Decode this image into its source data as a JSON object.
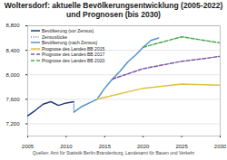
{
  "chart_data": {
    "type": "line",
    "title": "Woltersdorf: aktuelle Bevölkerungsentwicklung (2005-2022) und Prognosen (bis 2030)",
    "caption": "Quellen: Amt für Statistik Berlin-Brandenburg, Landesamt für Bauen und Verkehr",
    "xlim": [
      2005,
      2030
    ],
    "xticks": [
      2005,
      2010,
      2015,
      2020,
      2025,
      2030
    ],
    "ylim": [
      7000,
      8800
    ],
    "yticks": [
      {
        "value": 7200,
        "label": "7,200"
      },
      {
        "value": 7600,
        "label": "7,600"
      },
      {
        "value": 8000,
        "label": "8,000"
      },
      {
        "value": 8400,
        "label": "8,400"
      },
      {
        "value": 8800,
        "label": "8,800"
      }
    ],
    "grid": true,
    "legend": "top-left",
    "series": [
      {
        "name": "Bevölkerung (vor Zensus)",
        "color": "#1f3d7a",
        "line_style": "solid",
        "x": [
          2005,
          2006,
          2007,
          2008,
          2009,
          2010,
          2011
        ],
        "values": [
          7330,
          7420,
          7520,
          7560,
          7500,
          7540,
          7560
        ]
      },
      {
        "name": "Zensuslücke",
        "color": "#5b8fd0",
        "line_style": "dotted",
        "x": [
          2011,
          2011
        ],
        "values": [
          7560,
          7390
        ]
      },
      {
        "name": "Bevölkerung (nach Zensus)",
        "color": "#4f93d0",
        "line_style": "solid",
        "x": [
          2011,
          2012,
          2013,
          2014,
          2015,
          2016,
          2017,
          2018,
          2019,
          2020,
          2021,
          2022
        ],
        "values": [
          7390,
          7480,
          7540,
          7600,
          7780,
          7930,
          8060,
          8210,
          8320,
          8450,
          8560,
          8600
        ]
      },
      {
        "name": "Prognose des Landes BB 2015",
        "color": "#e0c040",
        "line_style": "solid",
        "x": [
          2014,
          2020,
          2025,
          2030
        ],
        "values": [
          7600,
          7780,
          7850,
          7830
        ]
      },
      {
        "name": "Prognose des Landes BB 2017",
        "color": "#7e57a8",
        "line_style": "dashed",
        "x": [
          2016,
          2020,
          2025,
          2030
        ],
        "values": [
          7930,
          8100,
          8220,
          8300
        ]
      },
      {
        "name": "Prognose des Landes BB 2020",
        "color": "#4caa4c",
        "line_style": "dashed",
        "x": [
          2020,
          2025,
          2030
        ],
        "values": [
          8450,
          8620,
          8520
        ]
      }
    ]
  }
}
